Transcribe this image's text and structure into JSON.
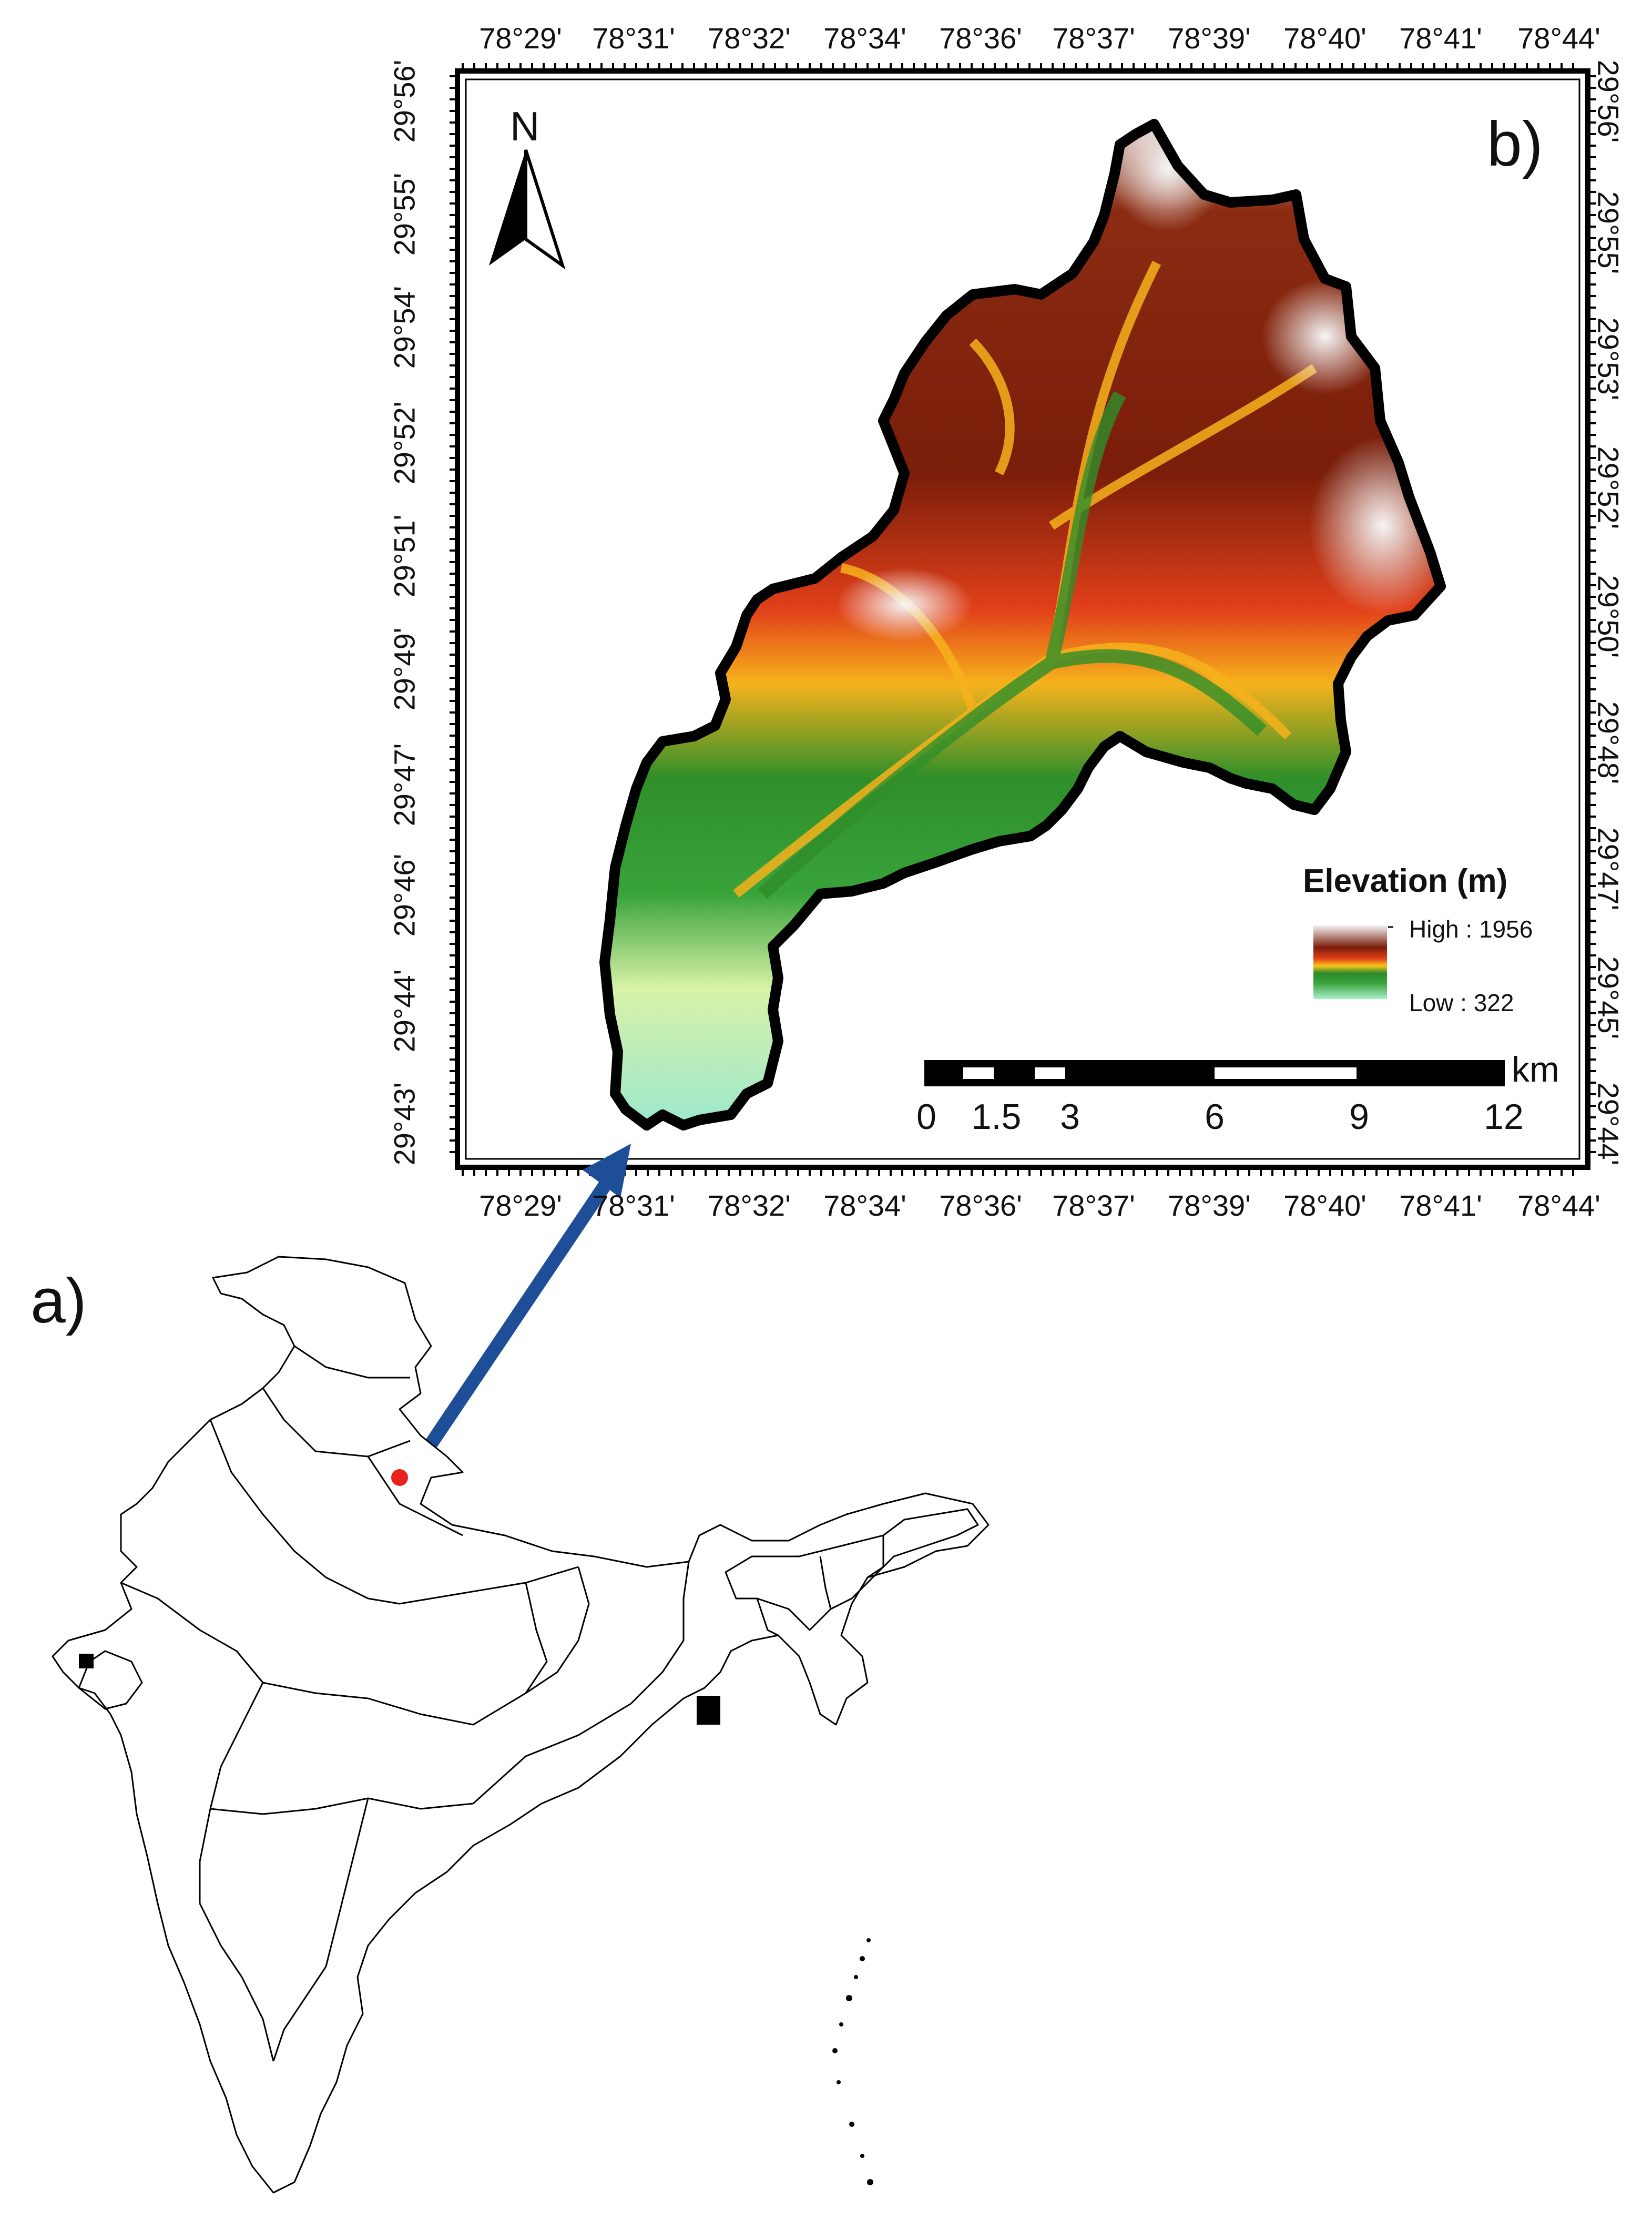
{
  "panel_a": {
    "label": "a)"
  },
  "panel_b": {
    "label": "b)",
    "north_arrow": "N",
    "top_ticks": [
      "78°29'",
      "78°31'",
      "78°32'",
      "78°34'",
      "78°36'",
      "78°37'",
      "78°39'",
      "78°40'",
      "78°41'",
      "78°44'"
    ],
    "bottom_ticks": [
      "78°29'",
      "78°31'",
      "78°32'",
      "78°34'",
      "78°36'",
      "78°37'",
      "78°39'",
      "78°40'",
      "78°41'",
      "78°44'"
    ],
    "left_ticks": [
      "29°56'",
      "29°55'",
      "29°54'",
      "29°52'",
      "29°51'",
      "29°49'",
      "29°47'",
      "29°46'",
      "29°44'",
      "29°43'"
    ],
    "right_ticks": [
      "29°56'",
      "29°55'",
      "29°53'",
      "29°52'",
      "29°50'",
      "29°48'",
      "29°47'",
      "29°45'",
      "29°44'"
    ],
    "legend": {
      "title": "Elevation (m)",
      "high": "High : 1956",
      "low": "Low : 322",
      "colors": [
        "#f2f2f2",
        "#7a1d0a",
        "#e2401a",
        "#f6c51c",
        "#3a9a2a",
        "#a8f0c8"
      ]
    },
    "scale_bar": {
      "unit": "km",
      "labels": [
        "0",
        "1.5",
        "3",
        "6",
        "9",
        "12"
      ]
    }
  },
  "colors": {
    "arrow": "#1f4e99",
    "location_dot": "#e8221c",
    "boundary": "#000000"
  }
}
